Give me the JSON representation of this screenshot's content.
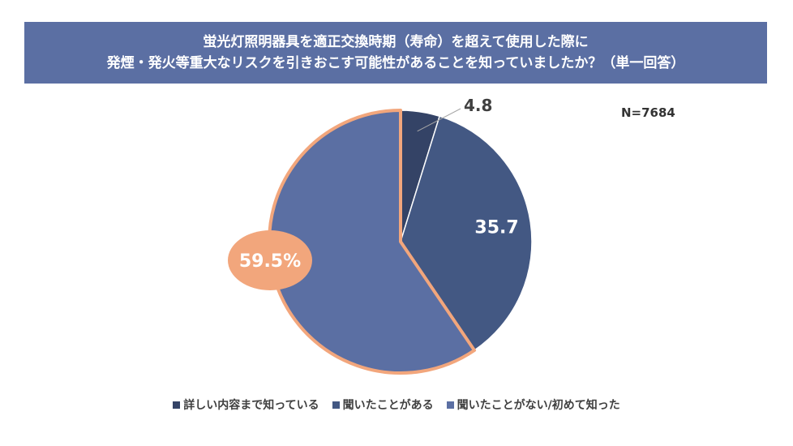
{
  "title": {
    "line1": "蛍光灯照明器具を適正交換時期（寿命）を超えて使用した際に",
    "line2": "発煙・発火等重大なリスクを引きおこす可能性があることを知っていましたか？（単一回答）"
  },
  "sample_size": "N=7684",
  "colors": {
    "title_bg": "#5b6fa3",
    "series": [
      "#344366",
      "#435883",
      "#5b6fa3"
    ],
    "highlight": "#f2a67c"
  },
  "chart_data": {
    "type": "pie",
    "title": "蛍光灯照明器具を適正交換時期（寿命）を超えて使用した際に発煙・発火等重大なリスクを引きおこす可能性があることを知っていましたか？（単一回答）",
    "categories": [
      "詳しい内容まで知っている",
      "聞いたことがある",
      "聞いたことがない/初めて知った"
    ],
    "values": [
      4.8,
      35.7,
      59.5
    ],
    "data_labels": [
      "4.8",
      "35.7",
      "59.5%"
    ],
    "legend_position": "bottom",
    "highlighted_slice": 2
  }
}
